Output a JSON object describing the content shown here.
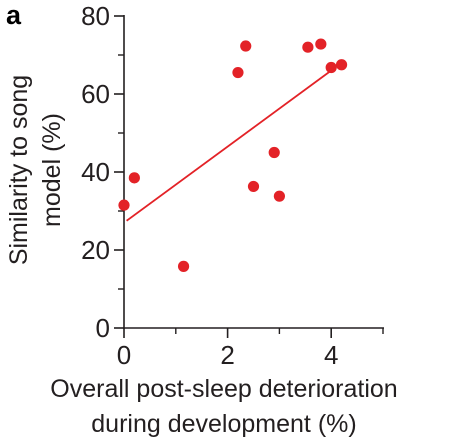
{
  "panel_label": "a",
  "colors": {
    "point": "#e32227",
    "fit_line": "#e32227",
    "axis": "#231f20"
  },
  "chart_data": {
    "type": "scatter",
    "xlabel": [
      "Overall post-sleep deterioration",
      "during development (%)"
    ],
    "ylabel": [
      "Similarity to song",
      "model (%)"
    ],
    "xlim": [
      0,
      5
    ],
    "ylim": [
      0,
      80
    ],
    "x_major_ticks": [
      0,
      2,
      4
    ],
    "x_minor_ticks": [
      1,
      3,
      5
    ],
    "y_major_ticks": [
      0,
      20,
      40,
      60,
      80
    ],
    "y_minor_ticks": [
      10,
      30,
      50,
      70
    ],
    "grid": false,
    "points": [
      {
        "x": 0.0,
        "y": 31.5
      },
      {
        "x": 0.2,
        "y": 38.5
      },
      {
        "x": 1.15,
        "y": 15.8
      },
      {
        "x": 2.2,
        "y": 65.5
      },
      {
        "x": 2.35,
        "y": 72.3
      },
      {
        "x": 2.5,
        "y": 36.3
      },
      {
        "x": 2.9,
        "y": 45.0
      },
      {
        "x": 3.0,
        "y": 33.8
      },
      {
        "x": 3.55,
        "y": 72.0
      },
      {
        "x": 3.8,
        "y": 72.8
      },
      {
        "x": 4.0,
        "y": 66.8
      },
      {
        "x": 4.2,
        "y": 67.5
      }
    ],
    "fit_line": {
      "x": [
        0.05,
        4.05
      ],
      "y": [
        27.5,
        66.5
      ]
    }
  }
}
